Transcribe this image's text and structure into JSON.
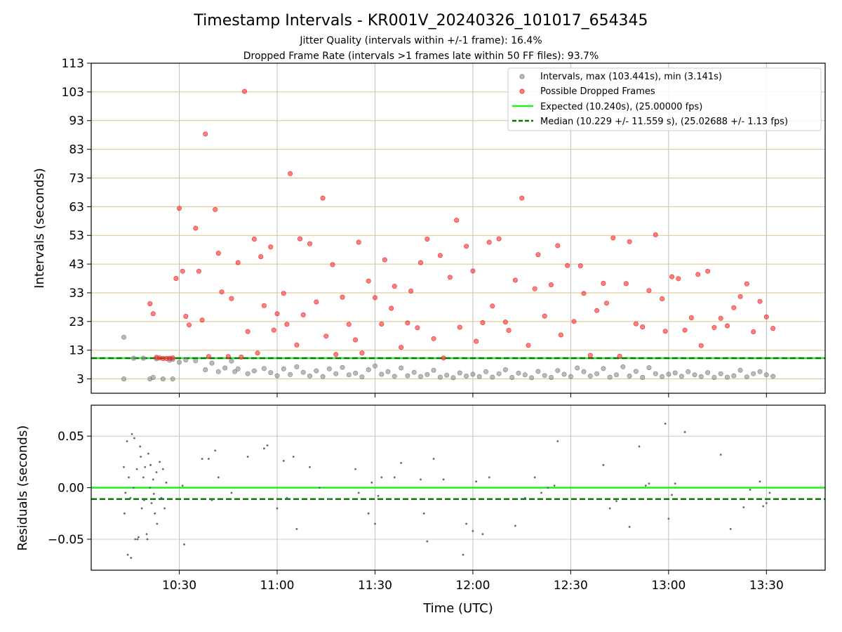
{
  "figure": {
    "title": "Timestamp Intervals - KR001V_20240326_101017_654345",
    "subtitle_1": "Jitter Quality (intervals within +/-1 frame): 16.4%",
    "subtitle_2": "Dropped Frame Rate (intervals >1 frames late within 50 FF files): 93.7%"
  },
  "chart_data": [
    {
      "type": "scatter",
      "title": "",
      "xlabel": "",
      "ylabel": "Intervals (seconds)",
      "x_unit": "time (UTC, minutes after 10:00)",
      "xlim": [
        3,
        228
      ],
      "ylim": [
        -2,
        113
      ],
      "y_ticks": [
        3,
        13,
        23,
        33,
        43,
        53,
        63,
        73,
        83,
        93,
        103,
        113
      ],
      "x_tick_labels": [
        "10:30",
        "11:00",
        "11:30",
        "12:00",
        "12:30",
        "13:00",
        "13:30"
      ],
      "x_tick_values": [
        30,
        60,
        90,
        120,
        150,
        180,
        210
      ],
      "grid": true,
      "legend_position": "top-right",
      "colors": {
        "intervals": "#8c8c8c",
        "dropped": "#ff2a2a",
        "expected": "#22ee22",
        "median": "#007700",
        "hgrid": "#d9c787",
        "vgrid": "#bfbfbf"
      },
      "series": [
        {
          "name": "Intervals, max (103.441s), min (3.141s)",
          "kind": "points",
          "color": "#8c8c8c",
          "x": [
            13,
            13,
            16,
            19,
            21,
            22,
            23,
            25,
            27,
            28,
            28,
            30,
            32,
            35,
            38,
            40,
            42,
            44,
            46,
            47,
            48,
            51,
            53,
            56,
            58,
            60,
            62,
            64,
            66,
            68,
            70,
            72,
            74,
            76,
            78,
            80,
            82,
            84,
            86,
            88,
            90,
            92,
            94,
            96,
            98,
            100,
            102,
            104,
            106,
            108,
            110,
            112,
            114,
            116,
            118,
            120,
            122,
            124,
            126,
            128,
            130,
            132,
            134,
            136,
            138,
            140,
            142,
            144,
            146,
            148,
            150,
            152,
            154,
            156,
            158,
            160,
            162,
            164,
            166,
            168,
            170,
            172,
            174,
            176,
            178,
            180,
            182,
            184,
            186,
            188,
            190,
            192,
            194,
            196,
            198,
            200,
            202,
            204,
            206,
            208,
            210,
            212
          ],
          "y": [
            17.5,
            3,
            10.2,
            10.2,
            3,
            3.5,
            10,
            3,
            9.5,
            3,
            9.8,
            8.8,
            9.6,
            9.3,
            6.2,
            8.5,
            5.5,
            6.8,
            9.2,
            5.5,
            6.5,
            4.8,
            5.8,
            6.6,
            5.2,
            4.1,
            6.5,
            4.5,
            7.2,
            5.3,
            4,
            5.8,
            3.8,
            6.5,
            4.8,
            7,
            4.4,
            5,
            3.7,
            6.2,
            7.5,
            4.6,
            5.5,
            3.9,
            6.8,
            4.1,
            5.3,
            3.8,
            4.5,
            6,
            3.6,
            4.3,
            3.4,
            5.1,
            4,
            4.6,
            3.8,
            5.5,
            3.6,
            4.8,
            6.2,
            3.5,
            5,
            4.4,
            3.4,
            5.6,
            4.2,
            3.5,
            5.9,
            4.6,
            3.8,
            6.8,
            5.5,
            4,
            4.8,
            6.6,
            3.6,
            4.4,
            7.2,
            4,
            5.6,
            3.5,
            6.9,
            4.8,
            3.8,
            4.6,
            5.1,
            3.9,
            5.5,
            4.4,
            3.8,
            5.2,
            3.5,
            4.8,
            3.6,
            4.1,
            6,
            3.7,
            4.8,
            5.5,
            4.4,
            3.9
          ]
        },
        {
          "name": "Possible Dropped Frames",
          "kind": "points",
          "color": "#ff2a2a",
          "x": [
            21,
            22,
            23,
            24,
            25,
            26,
            27,
            28,
            29,
            30,
            31,
            32,
            33,
            35,
            36,
            37,
            38,
            39,
            41,
            42,
            43,
            45,
            46,
            48,
            49,
            50,
            51,
            53,
            54,
            55,
            56,
            58,
            59,
            60,
            62,
            63,
            64,
            66,
            67,
            68,
            70,
            72,
            74,
            75,
            77,
            78,
            80,
            82,
            84,
            85,
            86,
            88,
            90,
            92,
            93,
            95,
            96,
            98,
            100,
            101,
            103,
            104,
            106,
            108,
            110,
            111,
            113,
            115,
            116,
            118,
            120,
            121,
            123,
            125,
            126,
            128,
            130,
            131,
            133,
            135,
            137,
            139,
            140,
            142,
            144,
            146,
            147,
            149,
            151,
            153,
            154,
            156,
            158,
            160,
            161,
            163,
            165,
            167,
            168,
            170,
            172,
            174,
            176,
            178,
            179,
            181,
            183,
            185,
            187,
            189,
            190,
            192,
            194,
            196,
            198,
            200,
            202,
            204,
            206,
            208,
            210,
            212
          ],
          "y": [
            29.2,
            25.7,
            10.5,
            10.3,
            10.1,
            10.1,
            10.2,
            10.3,
            38,
            62.4,
            40.5,
            24.8,
            21.8,
            55.5,
            40.5,
            23.5,
            88.3,
            10.8,
            62,
            46.8,
            33.3,
            10.8,
            31,
            43.5,
            10.6,
            103.2,
            19.5,
            51.7,
            12,
            45.6,
            28.5,
            49,
            20,
            25.7,
            32.8,
            22,
            74.5,
            14.8,
            51.8,
            25.3,
            50.1,
            29.8,
            66,
            17.9,
            42.8,
            11.5,
            31.5,
            22,
            16.6,
            50.6,
            12,
            37.1,
            31.3,
            22.1,
            44.5,
            27.6,
            35.3,
            14,
            22.5,
            33.6,
            20.8,
            43.5,
            51.7,
            17,
            46,
            10.3,
            38.4,
            58.3,
            21,
            49.2,
            40.6,
            16.1,
            22.6,
            50.6,
            28.4,
            51.8,
            22.8,
            19.9,
            37.4,
            66,
            14.7,
            34.4,
            46.3,
            24.9,
            35.8,
            49.4,
            18.3,
            42.5,
            23,
            42.4,
            32.8,
            11.2,
            26.8,
            36.3,
            29.4,
            52.1,
            10.9,
            36.2,
            50.8,
            22.2,
            21.1,
            33.8,
            53.2,
            30.9,
            19.6,
            38.6,
            37.9,
            20,
            24.3,
            39.4,
            14.6,
            40.5,
            20.9,
            24.1,
            21.5,
            27.8,
            31.7,
            36.1,
            19.4,
            30,
            24.6,
            20.6
          ]
        },
        {
          "name": "Expected (10.240s), (25.00000 fps)",
          "kind": "hline",
          "value": 10.24,
          "color": "#22ee22"
        },
        {
          "name": "Median (10.229 +/- 11.559 s), (25.02688 +/- 1.13 fps)",
          "kind": "hline",
          "value": 10.229,
          "color": "#007700"
        }
      ]
    },
    {
      "type": "scatter",
      "title": "",
      "xlabel": "Time (UTC)",
      "ylabel": "Residuals (seconds)",
      "xlim": [
        3,
        228
      ],
      "ylim": [
        -0.08,
        0.08
      ],
      "y_ticks": [
        0.05,
        0.0,
        -0.05
      ],
      "y_tick_labels": [
        "0.05",
        "0.00",
        "−0.05"
      ],
      "x_tick_labels": [
        "10:30",
        "11:00",
        "11:30",
        "12:00",
        "12:30",
        "13:00",
        "13:30"
      ],
      "x_tick_values": [
        30,
        60,
        90,
        120,
        150,
        180,
        210
      ],
      "grid": true,
      "series": [
        {
          "name": "",
          "kind": "points",
          "color": "#666666",
          "x": [
            13,
            13.5,
            14,
            14.5,
            15,
            15.5,
            16,
            16.5,
            17,
            17.5,
            18,
            18.5,
            19,
            19.5,
            20,
            20.5,
            21,
            21.5,
            22,
            22.5,
            23,
            24,
            24.5,
            25,
            25.5,
            26,
            13.2,
            14.2,
            15.2,
            16.2,
            17.2,
            18.2,
            19.2,
            20.2,
            21.2,
            22.2,
            23.2,
            31,
            31.5,
            37,
            39,
            40,
            41,
            42,
            46,
            51,
            56,
            57,
            60,
            62,
            63,
            65,
            66,
            70,
            73,
            76,
            84,
            85,
            88,
            89,
            90,
            91,
            92,
            96,
            98,
            104,
            105,
            106,
            108,
            111,
            117,
            118,
            120,
            121,
            123,
            125,
            133,
            136,
            139,
            141,
            143,
            145,
            146,
            160,
            162,
            164,
            168,
            171,
            173,
            174,
            179,
            180,
            181,
            182,
            185,
            196,
            199,
            203,
            205,
            208,
            209,
            210,
            211
          ],
          "y": [
            0.02,
            -0.005,
            0.045,
            0.01,
            -0.01,
            0.052,
            0.0,
            -0.05,
            0.018,
            -0.048,
            0.04,
            -0.02,
            0.01,
            0.02,
            -0.045,
            0.033,
            0.0,
            -0.015,
            0.008,
            -0.025,
            0.015,
            0.025,
            -0.01,
            0.018,
            -0.02,
            0.005,
            -0.025,
            -0.065,
            -0.068,
            0.048,
            -0.05,
            0.03,
            -0.012,
            -0.05,
            0.022,
            -0.006,
            -0.035,
            0.002,
            -0.055,
            0.028,
            0.028,
            -0.012,
            0.036,
            0.01,
            -0.005,
            0.03,
            0.038,
            0.041,
            -0.02,
            0.026,
            -0.01,
            0.03,
            -0.04,
            0.02,
            0.0,
            -0.011,
            0.018,
            -0.005,
            -0.025,
            0.005,
            -0.035,
            -0.008,
            0.01,
            0.01,
            0.024,
            0.008,
            -0.025,
            -0.052,
            0.028,
            0.008,
            -0.065,
            -0.035,
            -0.042,
            0.006,
            -0.045,
            0.01,
            -0.037,
            -0.01,
            0.01,
            -0.005,
            0.0,
            0.002,
            0.045,
            0.022,
            -0.02,
            -0.013,
            -0.038,
            0.04,
            0.002,
            0.004,
            0.062,
            -0.03,
            -0.007,
            0.004,
            0.054,
            0.032,
            -0.04,
            -0.019,
            -0.002,
            0.006,
            -0.018,
            -0.015,
            -0.005
          ]
        },
        {
          "name": "",
          "kind": "hline",
          "value": 0.0,
          "color": "#22ee22"
        },
        {
          "name": "",
          "kind": "hline",
          "value": -0.011,
          "color": "#007700"
        }
      ]
    }
  ]
}
